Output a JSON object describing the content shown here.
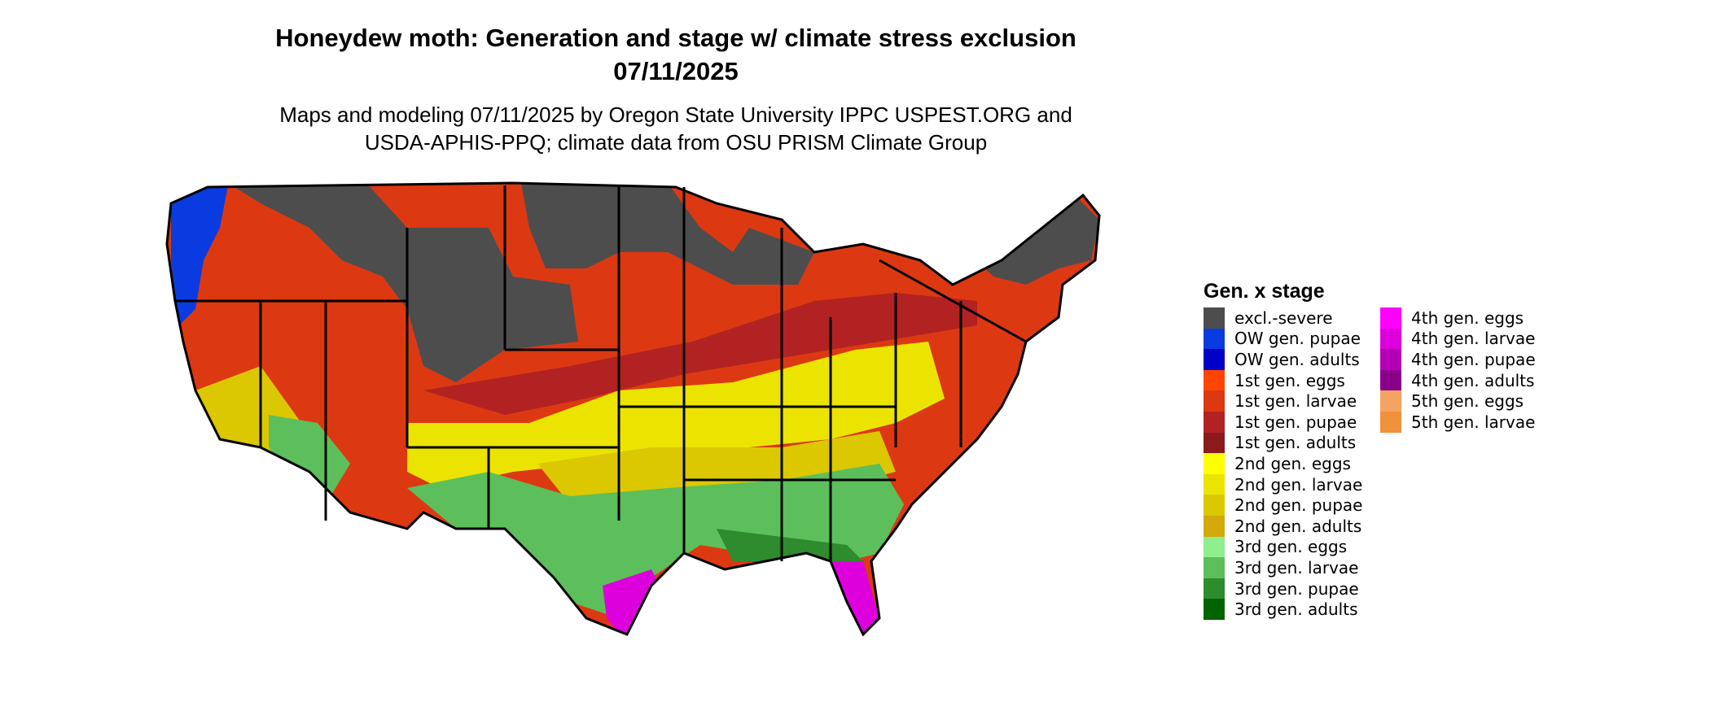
{
  "title_line1": "Honeydew moth: Generation and stage w/ climate stress exclusion",
  "title_line2": "07/11/2025",
  "subtitle_line1": "Maps and modeling 07/11/2025 by Oregon State University IPPC USPEST.ORG and",
  "subtitle_line2": "USDA-APHIS-PPQ; climate data from OSU PRISM Climate Group",
  "legend": {
    "title": "Gen. x stage",
    "col1": [
      {
        "label": "excl.-severe",
        "color": "#4d4d4d"
      },
      {
        "label": "OW gen. pupae",
        "color": "#0a3be0"
      },
      {
        "label": "OW gen. adults",
        "color": "#0000c8"
      },
      {
        "label": "1st gen. eggs",
        "color": "#ff4500"
      },
      {
        "label": "1st gen. larvae",
        "color": "#dc3912"
      },
      {
        "label": "1st gen. pupae",
        "color": "#b22222"
      },
      {
        "label": "1st gen. adults",
        "color": "#8b1a1a"
      },
      {
        "label": "2nd gen. eggs",
        "color": "#ffff00"
      },
      {
        "label": "2nd gen. larvae",
        "color": "#ebe400"
      },
      {
        "label": "2nd gen. pupae",
        "color": "#dcc800"
      },
      {
        "label": "2nd gen. adults",
        "color": "#d2aa0a"
      },
      {
        "label": "3rd gen. eggs",
        "color": "#90ee90"
      },
      {
        "label": "3rd gen. larvae",
        "color": "#5cbf5c"
      },
      {
        "label": "3rd gen. pupae",
        "color": "#2e8b2e"
      },
      {
        "label": "3rd gen. adults",
        "color": "#006400"
      }
    ],
    "col2": [
      {
        "label": "4th gen. eggs",
        "color": "#ff00ff"
      },
      {
        "label": "4th gen. larvae",
        "color": "#dd00dd"
      },
      {
        "label": "4th gen. pupae",
        "color": "#b400b4"
      },
      {
        "label": "4th gen. adults",
        "color": "#8b008b"
      },
      {
        "label": "5th gen. eggs",
        "color": "#f4a460"
      },
      {
        "label": "5th gen. larvae",
        "color": "#f0913c"
      }
    ]
  }
}
